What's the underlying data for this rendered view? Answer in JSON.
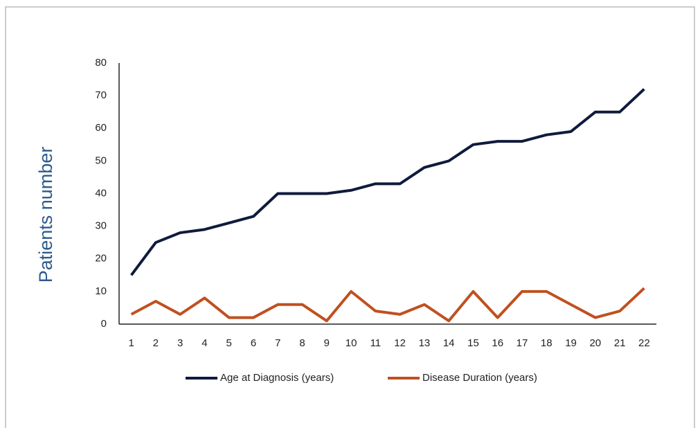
{
  "chart_data": {
    "type": "line",
    "ylabel": "Patients number",
    "categories": [
      "1",
      "2",
      "3",
      "4",
      "5",
      "6",
      "7",
      "8",
      "9",
      "10",
      "11",
      "12",
      "13",
      "14",
      "15",
      "16",
      "17",
      "18",
      "19",
      "20",
      "21",
      "22"
    ],
    "series": [
      {
        "name": "Age at Diagnosis (years)",
        "color": "#0f1b3c",
        "values": [
          15,
          25,
          28,
          29,
          31,
          33,
          40,
          40,
          40,
          41,
          43,
          43,
          48,
          50,
          55,
          56,
          56,
          58,
          59,
          65,
          65,
          72
        ]
      },
      {
        "name": "Disease Duration (years)",
        "color": "#c0501f",
        "values": [
          3,
          7,
          3,
          8,
          2,
          2,
          6,
          6,
          1,
          10,
          4,
          3,
          6,
          1,
          10,
          2,
          10,
          10,
          6,
          2,
          4,
          11
        ]
      }
    ],
    "ylim": [
      0,
      80
    ],
    "yticks": [
      0,
      10,
      20,
      30,
      40,
      50,
      60,
      70,
      80
    ],
    "grid": false,
    "legend": "bottom"
  }
}
